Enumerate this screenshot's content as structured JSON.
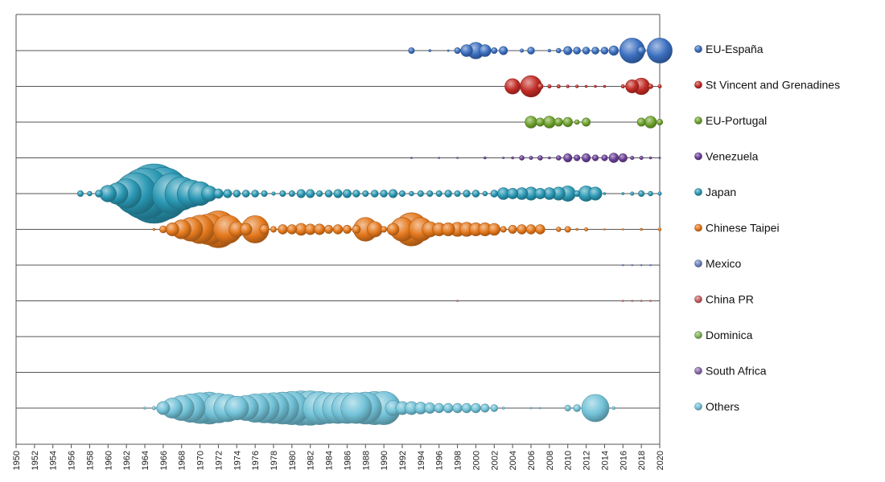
{
  "chart_data": {
    "type": "scatter",
    "title": "",
    "xlabel": "",
    "ylabel": "",
    "xlim": [
      1950,
      2020
    ],
    "x_ticks": [
      "1950",
      "1952",
      "1954",
      "1956",
      "1958",
      "1960",
      "1962",
      "1964",
      "1966",
      "1968",
      "1970",
      "1972",
      "1974",
      "1976",
      "1978",
      "1980",
      "1982",
      "1984",
      "1986",
      "1988",
      "1990",
      "1992",
      "1994",
      "1996",
      "1998",
      "2000",
      "2002",
      "2004",
      "2006",
      "2008",
      "2010",
      "2012",
      "2014",
      "2016",
      "2018",
      "2020"
    ],
    "legend_position": "right",
    "size_encoding": "bubble size relative to largest bubble (1.0)",
    "series": [
      {
        "name": "EU-España",
        "color": "#3a6fc0",
        "points": [
          [
            1993,
            0.1
          ],
          [
            1995,
            0.04
          ],
          [
            1997,
            0.03
          ],
          [
            1998,
            0.1
          ],
          [
            1999,
            0.2
          ],
          [
            2000,
            0.28
          ],
          [
            2001,
            0.2
          ],
          [
            2002,
            0.1
          ],
          [
            2003,
            0.14
          ],
          [
            2005,
            0.06
          ],
          [
            2006,
            0.12
          ],
          [
            2008,
            0.05
          ],
          [
            2009,
            0.08
          ],
          [
            2010,
            0.14
          ],
          [
            2011,
            0.12
          ],
          [
            2012,
            0.12
          ],
          [
            2013,
            0.12
          ],
          [
            2014,
            0.12
          ],
          [
            2015,
            0.16
          ],
          [
            2017,
            0.42
          ],
          [
            2018,
            0.14
          ],
          [
            2020,
            0.42
          ]
        ]
      },
      {
        "name": "St Vincent and Grenadines",
        "color": "#c22b25",
        "points": [
          [
            2004,
            0.26
          ],
          [
            2006,
            0.36
          ],
          [
            2007,
            0.1
          ],
          [
            2008,
            0.06
          ],
          [
            2009,
            0.06
          ],
          [
            2010,
            0.05
          ],
          [
            2011,
            0.05
          ],
          [
            2012,
            0.04
          ],
          [
            2013,
            0.04
          ],
          [
            2014,
            0.04
          ],
          [
            2016,
            0.06
          ],
          [
            2017,
            0.22
          ],
          [
            2018,
            0.28
          ],
          [
            2019,
            0.08
          ],
          [
            2020,
            0.06
          ]
        ]
      },
      {
        "name": "EU-Portugal",
        "color": "#6fa32e",
        "points": [
          [
            2006,
            0.2
          ],
          [
            2007,
            0.14
          ],
          [
            2008,
            0.2
          ],
          [
            2009,
            0.14
          ],
          [
            2010,
            0.16
          ],
          [
            2011,
            0.08
          ],
          [
            2012,
            0.14
          ],
          [
            2018,
            0.14
          ],
          [
            2019,
            0.2
          ],
          [
            2020,
            0.1
          ]
        ]
      },
      {
        "name": "Venezuela",
        "color": "#6a3f96",
        "points": [
          [
            1993,
            0.02
          ],
          [
            1996,
            0.02
          ],
          [
            1998,
            0.02
          ],
          [
            2001,
            0.04
          ],
          [
            2003,
            0.03
          ],
          [
            2004,
            0.04
          ],
          [
            2005,
            0.08
          ],
          [
            2006,
            0.06
          ],
          [
            2007,
            0.08
          ],
          [
            2008,
            0.04
          ],
          [
            2009,
            0.08
          ],
          [
            2010,
            0.14
          ],
          [
            2011,
            0.1
          ],
          [
            2012,
            0.14
          ],
          [
            2013,
            0.1
          ],
          [
            2014,
            0.1
          ],
          [
            2015,
            0.16
          ],
          [
            2016,
            0.14
          ],
          [
            2017,
            0.06
          ],
          [
            2018,
            0.06
          ],
          [
            2019,
            0.04
          ],
          [
            2020,
            0.03
          ]
        ]
      },
      {
        "name": "Japan",
        "color": "#2a98b4",
        "points": [
          [
            1957,
            0.1
          ],
          [
            1958,
            0.08
          ],
          [
            1959,
            0.12
          ],
          [
            1960,
            0.28
          ],
          [
            1961,
            0.36
          ],
          [
            1962,
            0.5
          ],
          [
            1963,
            0.7
          ],
          [
            1964,
            0.86
          ],
          [
            1965,
            1.0
          ],
          [
            1966,
            0.88
          ],
          [
            1967,
            0.68
          ],
          [
            1968,
            0.56
          ],
          [
            1969,
            0.46
          ],
          [
            1970,
            0.4
          ],
          [
            1971,
            0.26
          ],
          [
            1972,
            0.16
          ],
          [
            1973,
            0.14
          ],
          [
            1974,
            0.12
          ],
          [
            1975,
            0.12
          ],
          [
            1976,
            0.12
          ],
          [
            1977,
            0.1
          ],
          [
            1978,
            0.06
          ],
          [
            1979,
            0.1
          ],
          [
            1980,
            0.1
          ],
          [
            1981,
            0.14
          ],
          [
            1982,
            0.14
          ],
          [
            1983,
            0.1
          ],
          [
            1984,
            0.12
          ],
          [
            1985,
            0.14
          ],
          [
            1986,
            0.14
          ],
          [
            1987,
            0.12
          ],
          [
            1988,
            0.1
          ],
          [
            1989,
            0.12
          ],
          [
            1990,
            0.12
          ],
          [
            1991,
            0.14
          ],
          [
            1992,
            0.1
          ],
          [
            1993,
            0.08
          ],
          [
            1994,
            0.1
          ],
          [
            1995,
            0.1
          ],
          [
            1996,
            0.1
          ],
          [
            1997,
            0.12
          ],
          [
            1998,
            0.1
          ],
          [
            1999,
            0.12
          ],
          [
            2000,
            0.12
          ],
          [
            2001,
            0.08
          ],
          [
            2002,
            0.12
          ],
          [
            2003,
            0.2
          ],
          [
            2004,
            0.18
          ],
          [
            2005,
            0.2
          ],
          [
            2006,
            0.22
          ],
          [
            2007,
            0.18
          ],
          [
            2008,
            0.2
          ],
          [
            2009,
            0.22
          ],
          [
            2010,
            0.26
          ],
          [
            2011,
            0.1
          ],
          [
            2012,
            0.26
          ],
          [
            2013,
            0.22
          ],
          [
            2014,
            0.04
          ],
          [
            2016,
            0.04
          ],
          [
            2017,
            0.06
          ],
          [
            2018,
            0.1
          ],
          [
            2019,
            0.08
          ],
          [
            2020,
            0.06
          ]
        ]
      },
      {
        "name": "Chinese Taipei",
        "color": "#e4781c",
        "points": [
          [
            1965,
            0.04
          ],
          [
            1966,
            0.12
          ],
          [
            1967,
            0.22
          ],
          [
            1968,
            0.32
          ],
          [
            1969,
            0.4
          ],
          [
            1970,
            0.48
          ],
          [
            1971,
            0.52
          ],
          [
            1972,
            0.62
          ],
          [
            1973,
            0.48
          ],
          [
            1974,
            0.26
          ],
          [
            1975,
            0.2
          ],
          [
            1976,
            0.46
          ],
          [
            1977,
            0.16
          ],
          [
            1978,
            0.1
          ],
          [
            1979,
            0.16
          ],
          [
            1980,
            0.16
          ],
          [
            1981,
            0.2
          ],
          [
            1982,
            0.18
          ],
          [
            1983,
            0.18
          ],
          [
            1984,
            0.14
          ],
          [
            1985,
            0.16
          ],
          [
            1986,
            0.14
          ],
          [
            1987,
            0.14
          ],
          [
            1988,
            0.4
          ],
          [
            1989,
            0.26
          ],
          [
            1990,
            0.1
          ],
          [
            1991,
            0.2
          ],
          [
            1992,
            0.4
          ],
          [
            1993,
            0.56
          ],
          [
            1994,
            0.4
          ],
          [
            1995,
            0.26
          ],
          [
            1996,
            0.22
          ],
          [
            1997,
            0.22
          ],
          [
            1998,
            0.24
          ],
          [
            1999,
            0.24
          ],
          [
            2000,
            0.22
          ],
          [
            2001,
            0.22
          ],
          [
            2002,
            0.2
          ],
          [
            2003,
            0.1
          ],
          [
            2004,
            0.14
          ],
          [
            2005,
            0.16
          ],
          [
            2006,
            0.16
          ],
          [
            2007,
            0.16
          ],
          [
            2009,
            0.08
          ],
          [
            2010,
            0.1
          ],
          [
            2011,
            0.04
          ],
          [
            2012,
            0.06
          ],
          [
            2014,
            0.02
          ],
          [
            2016,
            0.02
          ],
          [
            2018,
            0.04
          ],
          [
            2020,
            0.05
          ]
        ]
      },
      {
        "name": "Mexico",
        "color": "#6c83bd",
        "points": [
          [
            2016,
            0.02
          ],
          [
            2017,
            0.01
          ],
          [
            2018,
            0.02
          ],
          [
            2019,
            0.01
          ]
        ]
      },
      {
        "name": "China PR",
        "color": "#c85f5f",
        "points": [
          [
            1998,
            0.02
          ],
          [
            2016,
            0.01
          ],
          [
            2017,
            0.01
          ],
          [
            2018,
            0.02
          ],
          [
            2019,
            0.02
          ]
        ]
      },
      {
        "name": "Dominica",
        "color": "#82b35a",
        "points": []
      },
      {
        "name": "South Africa",
        "color": "#8a6aa8",
        "points": []
      },
      {
        "name": "Others",
        "color": "#72c2d8",
        "points": [
          [
            1964,
            0.04
          ],
          [
            1965,
            0.06
          ],
          [
            1966,
            0.22
          ],
          [
            1967,
            0.34
          ],
          [
            1968,
            0.42
          ],
          [
            1969,
            0.48
          ],
          [
            1970,
            0.52
          ],
          [
            1971,
            0.54
          ],
          [
            1972,
            0.5
          ],
          [
            1973,
            0.46
          ],
          [
            1974,
            0.4
          ],
          [
            1975,
            0.42
          ],
          [
            1976,
            0.48
          ],
          [
            1977,
            0.5
          ],
          [
            1978,
            0.52
          ],
          [
            1979,
            0.54
          ],
          [
            1980,
            0.56
          ],
          [
            1981,
            0.58
          ],
          [
            1982,
            0.58
          ],
          [
            1983,
            0.56
          ],
          [
            1984,
            0.52
          ],
          [
            1985,
            0.52
          ],
          [
            1986,
            0.52
          ],
          [
            1987,
            0.52
          ],
          [
            1988,
            0.54
          ],
          [
            1989,
            0.56
          ],
          [
            1990,
            0.56
          ],
          [
            1991,
            0.26
          ],
          [
            1992,
            0.22
          ],
          [
            1993,
            0.22
          ],
          [
            1994,
            0.2
          ],
          [
            1995,
            0.18
          ],
          [
            1996,
            0.16
          ],
          [
            1997,
            0.16
          ],
          [
            1998,
            0.16
          ],
          [
            1999,
            0.16
          ],
          [
            2000,
            0.16
          ],
          [
            2001,
            0.14
          ],
          [
            2002,
            0.12
          ],
          [
            2003,
            0.04
          ],
          [
            2006,
            0.03
          ],
          [
            2007,
            0.03
          ],
          [
            2010,
            0.1
          ],
          [
            2011,
            0.12
          ],
          [
            2013,
            0.46
          ],
          [
            2015,
            0.05
          ]
        ]
      }
    ]
  }
}
